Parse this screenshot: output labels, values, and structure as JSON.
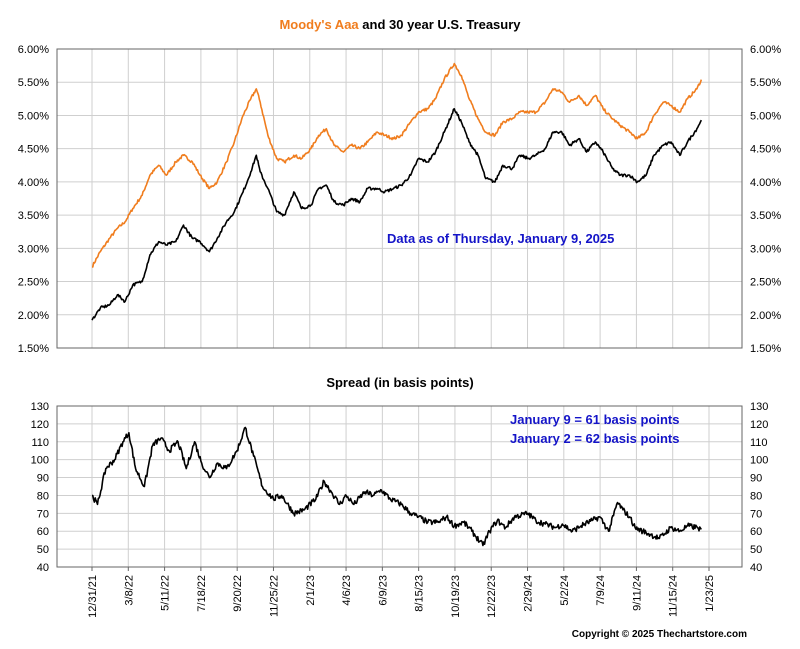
{
  "chart_data": [
    {
      "type": "line",
      "title_parts": [
        {
          "text": "Moody's Aaa",
          "color": "#f07d1e"
        },
        {
          "text": " and 30 year U.S. Treasury",
          "color": "#000000"
        }
      ],
      "annotation": "Data as of Thursday, January 9, 2025",
      "x_type": "date",
      "xlim": [
        "2021-12-31",
        "2025-01-23"
      ],
      "ylim": [
        1.5,
        6.0
      ],
      "yticks": [
        "1.50%",
        "2.00%",
        "2.50%",
        "3.00%",
        "3.50%",
        "4.00%",
        "4.50%",
        "5.00%",
        "5.50%",
        "6.00%"
      ],
      "grid": true,
      "series": [
        {
          "name": "Moody's Aaa",
          "color": "#f07d1e",
          "points": [
            [
              "2021-12-31",
              2.72
            ],
            [
              "2022-01-15",
              2.95
            ],
            [
              "2022-02-01",
              3.15
            ],
            [
              "2022-02-15",
              3.3
            ],
            [
              "2022-03-01",
              3.4
            ],
            [
              "2022-03-15",
              3.6
            ],
            [
              "2022-04-01",
              3.8
            ],
            [
              "2022-04-15",
              4.1
            ],
            [
              "2022-05-01",
              4.25
            ],
            [
              "2022-05-15",
              4.1
            ],
            [
              "2022-06-01",
              4.3
            ],
            [
              "2022-06-15",
              4.4
            ],
            [
              "2022-07-01",
              4.3
            ],
            [
              "2022-07-15",
              4.1
            ],
            [
              "2022-08-01",
              3.9
            ],
            [
              "2022-08-15",
              4.0
            ],
            [
              "2022-09-01",
              4.3
            ],
            [
              "2022-09-15",
              4.6
            ],
            [
              "2022-10-01",
              5.0
            ],
            [
              "2022-10-15",
              5.25
            ],
            [
              "2022-10-25",
              5.4
            ],
            [
              "2022-11-01",
              5.2
            ],
            [
              "2022-11-15",
              4.7
            ],
            [
              "2022-12-01",
              4.35
            ],
            [
              "2022-12-15",
              4.3
            ],
            [
              "2023-01-01",
              4.4
            ],
            [
              "2023-01-15",
              4.35
            ],
            [
              "2023-02-01",
              4.5
            ],
            [
              "2023-02-15",
              4.7
            ],
            [
              "2023-03-01",
              4.8
            ],
            [
              "2023-03-15",
              4.55
            ],
            [
              "2023-04-01",
              4.45
            ],
            [
              "2023-04-15",
              4.55
            ],
            [
              "2023-05-01",
              4.5
            ],
            [
              "2023-05-15",
              4.6
            ],
            [
              "2023-06-01",
              4.75
            ],
            [
              "2023-06-15",
              4.7
            ],
            [
              "2023-07-01",
              4.65
            ],
            [
              "2023-07-15",
              4.7
            ],
            [
              "2023-08-01",
              4.9
            ],
            [
              "2023-08-15",
              5.05
            ],
            [
              "2023-09-01",
              5.1
            ],
            [
              "2023-09-15",
              5.25
            ],
            [
              "2023-10-01",
              5.55
            ],
            [
              "2023-10-19",
              5.78
            ],
            [
              "2023-11-01",
              5.6
            ],
            [
              "2023-11-15",
              5.25
            ],
            [
              "2023-12-01",
              4.95
            ],
            [
              "2023-12-15",
              4.75
            ],
            [
              "2024-01-01",
              4.7
            ],
            [
              "2024-01-15",
              4.9
            ],
            [
              "2024-02-01",
              4.95
            ],
            [
              "2024-02-15",
              5.05
            ],
            [
              "2024-03-01",
              5.05
            ],
            [
              "2024-03-15",
              5.05
            ],
            [
              "2024-04-01",
              5.2
            ],
            [
              "2024-04-15",
              5.4
            ],
            [
              "2024-05-01",
              5.35
            ],
            [
              "2024-05-15",
              5.2
            ],
            [
              "2024-06-01",
              5.3
            ],
            [
              "2024-06-15",
              5.15
            ],
            [
              "2024-07-01",
              5.3
            ],
            [
              "2024-07-15",
              5.1
            ],
            [
              "2024-08-01",
              4.95
            ],
            [
              "2024-08-15",
              4.85
            ],
            [
              "2024-09-01",
              4.75
            ],
            [
              "2024-09-15",
              4.65
            ],
            [
              "2024-10-01",
              4.75
            ],
            [
              "2024-10-15",
              5.0
            ],
            [
              "2024-11-01",
              5.2
            ],
            [
              "2024-11-15",
              5.15
            ],
            [
              "2024-12-01",
              5.05
            ],
            [
              "2024-12-15",
              5.25
            ],
            [
              "2025-01-01",
              5.4
            ],
            [
              "2025-01-09",
              5.54
            ]
          ]
        },
        {
          "name": "30 year U.S. Treasury",
          "color": "#000000",
          "points": [
            [
              "2021-12-31",
              1.92
            ],
            [
              "2022-01-15",
              2.1
            ],
            [
              "2022-02-01",
              2.15
            ],
            [
              "2022-02-15",
              2.3
            ],
            [
              "2022-03-01",
              2.2
            ],
            [
              "2022-03-15",
              2.45
            ],
            [
              "2022-04-01",
              2.5
            ],
            [
              "2022-04-15",
              2.9
            ],
            [
              "2022-05-01",
              3.1
            ],
            [
              "2022-05-15",
              3.05
            ],
            [
              "2022-06-01",
              3.1
            ],
            [
              "2022-06-15",
              3.35
            ],
            [
              "2022-07-01",
              3.15
            ],
            [
              "2022-07-15",
              3.1
            ],
            [
              "2022-08-01",
              2.95
            ],
            [
              "2022-08-15",
              3.15
            ],
            [
              "2022-09-01",
              3.4
            ],
            [
              "2022-09-15",
              3.55
            ],
            [
              "2022-10-01",
              3.85
            ],
            [
              "2022-10-15",
              4.15
            ],
            [
              "2022-10-25",
              4.4
            ],
            [
              "2022-11-01",
              4.15
            ],
            [
              "2022-11-15",
              3.9
            ],
            [
              "2022-12-01",
              3.55
            ],
            [
              "2022-12-15",
              3.5
            ],
            [
              "2023-01-01",
              3.85
            ],
            [
              "2023-01-15",
              3.6
            ],
            [
              "2023-02-01",
              3.65
            ],
            [
              "2023-02-15",
              3.9
            ],
            [
              "2023-03-01",
              3.95
            ],
            [
              "2023-03-15",
              3.7
            ],
            [
              "2023-04-01",
              3.65
            ],
            [
              "2023-04-15",
              3.75
            ],
            [
              "2023-05-01",
              3.7
            ],
            [
              "2023-05-15",
              3.9
            ],
            [
              "2023-06-01",
              3.9
            ],
            [
              "2023-06-15",
              3.85
            ],
            [
              "2023-07-01",
              3.9
            ],
            [
              "2023-07-15",
              3.95
            ],
            [
              "2023-08-01",
              4.1
            ],
            [
              "2023-08-15",
              4.35
            ],
            [
              "2023-09-01",
              4.3
            ],
            [
              "2023-09-15",
              4.45
            ],
            [
              "2023-10-01",
              4.75
            ],
            [
              "2023-10-19",
              5.1
            ],
            [
              "2023-11-01",
              4.9
            ],
            [
              "2023-11-15",
              4.6
            ],
            [
              "2023-12-01",
              4.4
            ],
            [
              "2023-12-15",
              4.05
            ],
            [
              "2024-01-01",
              4.0
            ],
            [
              "2024-01-15",
              4.25
            ],
            [
              "2024-02-01",
              4.2
            ],
            [
              "2024-02-15",
              4.4
            ],
            [
              "2024-03-01",
              4.35
            ],
            [
              "2024-03-15",
              4.4
            ],
            [
              "2024-04-01",
              4.5
            ],
            [
              "2024-04-15",
              4.75
            ],
            [
              "2024-05-01",
              4.75
            ],
            [
              "2024-05-15",
              4.55
            ],
            [
              "2024-06-01",
              4.65
            ],
            [
              "2024-06-15",
              4.45
            ],
            [
              "2024-07-01",
              4.6
            ],
            [
              "2024-07-15",
              4.45
            ],
            [
              "2024-08-01",
              4.2
            ],
            [
              "2024-08-15",
              4.1
            ],
            [
              "2024-09-01",
              4.1
            ],
            [
              "2024-09-15",
              4.0
            ],
            [
              "2024-10-01",
              4.1
            ],
            [
              "2024-10-15",
              4.4
            ],
            [
              "2024-11-01",
              4.55
            ],
            [
              "2024-11-15",
              4.6
            ],
            [
              "2024-12-01",
              4.4
            ],
            [
              "2024-12-15",
              4.6
            ],
            [
              "2025-01-01",
              4.8
            ],
            [
              "2025-01-09",
              4.93
            ]
          ]
        }
      ]
    },
    {
      "type": "line",
      "title": "Spread (in basis points)",
      "annotations": [
        "January 9 = 61 basis points",
        "January 2 = 62 basis points"
      ],
      "x_type": "date",
      "xlim": [
        "2021-12-31",
        "2025-01-23"
      ],
      "ylim": [
        40,
        130
      ],
      "yticks": [
        "40",
        "50",
        "60",
        "70",
        "80",
        "90",
        "100",
        "110",
        "120",
        "130"
      ],
      "grid": true,
      "series": [
        {
          "color": "#000000",
          "points": [
            [
              "2021-12-31",
              80
            ],
            [
              "2022-01-10",
              75
            ],
            [
              "2022-01-25",
              95
            ],
            [
              "2022-02-10",
              100
            ],
            [
              "2022-02-25",
              110
            ],
            [
              "2022-03-08",
              115
            ],
            [
              "2022-03-20",
              95
            ],
            [
              "2022-04-05",
              85
            ],
            [
              "2022-04-20",
              108
            ],
            [
              "2022-05-05",
              112
            ],
            [
              "2022-05-20",
              105
            ],
            [
              "2022-06-05",
              110
            ],
            [
              "2022-06-20",
              95
            ],
            [
              "2022-07-05",
              110
            ],
            [
              "2022-07-18",
              98
            ],
            [
              "2022-08-01",
              90
            ],
            [
              "2022-08-15",
              98
            ],
            [
              "2022-09-01",
              95
            ],
            [
              "2022-09-20",
              105
            ],
            [
              "2022-10-05",
              118
            ],
            [
              "2022-10-20",
              102
            ],
            [
              "2022-11-05",
              85
            ],
            [
              "2022-11-25",
              78
            ],
            [
              "2022-12-10",
              80
            ],
            [
              "2023-01-01",
              70
            ],
            [
              "2023-01-20",
              72
            ],
            [
              "2023-02-10",
              78
            ],
            [
              "2023-02-25",
              88
            ],
            [
              "2023-03-10",
              82
            ],
            [
              "2023-03-25",
              75
            ],
            [
              "2023-04-06",
              80
            ],
            [
              "2023-04-20",
              75
            ],
            [
              "2023-05-10",
              82
            ],
            [
              "2023-05-25",
              80
            ],
            [
              "2023-06-09",
              83
            ],
            [
              "2023-06-25",
              78
            ],
            [
              "2023-07-15",
              75
            ],
            [
              "2023-08-01",
              70
            ],
            [
              "2023-08-15",
              68
            ],
            [
              "2023-09-01",
              65
            ],
            [
              "2023-09-20",
              65
            ],
            [
              "2023-10-05",
              68
            ],
            [
              "2023-10-19",
              63
            ],
            [
              "2023-11-05",
              65
            ],
            [
              "2023-11-20",
              60
            ],
            [
              "2023-12-10",
              52
            ],
            [
              "2023-12-22",
              60
            ],
            [
              "2024-01-05",
              66
            ],
            [
              "2024-01-20",
              62
            ],
            [
              "2024-02-05",
              68
            ],
            [
              "2024-02-29",
              70
            ],
            [
              "2024-03-15",
              66
            ],
            [
              "2024-04-01",
              64
            ],
            [
              "2024-04-20",
              62
            ],
            [
              "2024-05-02",
              64
            ],
            [
              "2024-05-20",
              60
            ],
            [
              "2024-06-05",
              63
            ],
            [
              "2024-06-25",
              66
            ],
            [
              "2024-07-09",
              68
            ],
            [
              "2024-07-25",
              60
            ],
            [
              "2024-08-10",
              76
            ],
            [
              "2024-08-20",
              72
            ],
            [
              "2024-09-01",
              68
            ],
            [
              "2024-09-11",
              62
            ],
            [
              "2024-09-25",
              60
            ],
            [
              "2024-10-10",
              58
            ],
            [
              "2024-10-25",
              56
            ],
            [
              "2024-11-15",
              62
            ],
            [
              "2024-12-01",
              60
            ],
            [
              "2024-12-15",
              63
            ],
            [
              "2025-01-02",
              62
            ],
            [
              "2025-01-09",
              61
            ]
          ]
        }
      ]
    }
  ],
  "x_tick_labels": [
    "12/31/21",
    "3/8/22",
    "5/11/22",
    "7/18/22",
    "9/20/22",
    "11/25/22",
    "2/1/23",
    "4/6/23",
    "6/9/23",
    "8/15/23",
    "10/19/23",
    "12/22/23",
    "2/29/24",
    "5/2/24",
    "7/9/24",
    "9/11/24",
    "11/15/24",
    "1/23/25"
  ],
  "copyright": "Copyright © 2025 Thechartstore.com"
}
